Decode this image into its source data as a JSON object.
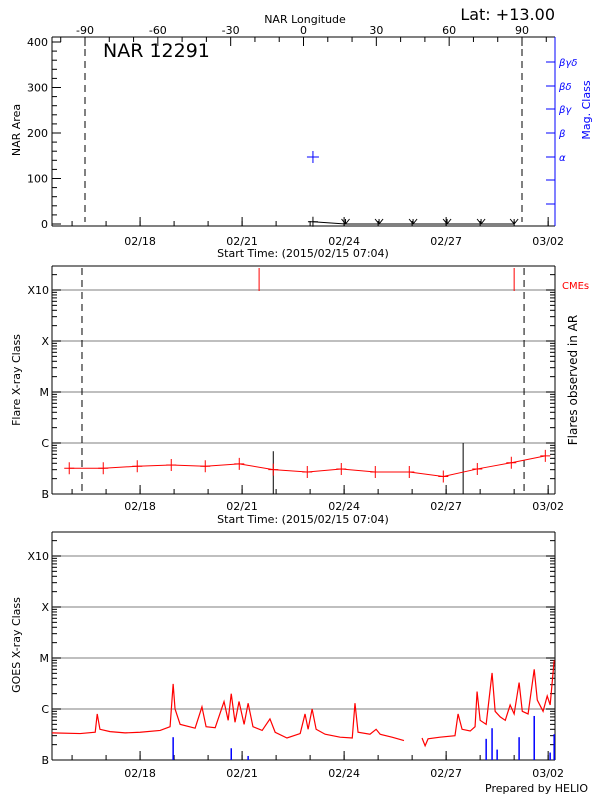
{
  "header": {
    "lat_label": "Lat: +13.00",
    "region_label": "NAR 12291",
    "longitude_title": "NAR Longitude"
  },
  "footer": {
    "prepared_by": "Prepared by HELIO"
  },
  "colors": {
    "axis": "#000000",
    "mag_class": "#0000ff",
    "flare_series": "#ff0000",
    "cme": "#ff0000",
    "grid": "#999999",
    "goes_events": "#0000ff"
  },
  "chart_data": [
    {
      "type": "line",
      "xlabel": "Start Time: (2015/02/15 07:04)",
      "ylabel": "NAR Area",
      "y2label": "Mag. Class",
      "xlim": [
        "02/15 09:50",
        "03/02 04:50"
      ],
      "ylim": [
        0,
        400
      ],
      "x_ticks": [
        "02/18",
        "02/21",
        "02/24",
        "02/27",
        "03/02"
      ],
      "y_ticks": [
        "0",
        "100",
        "200",
        "300",
        "400"
      ],
      "top_axis": {
        "label": "NAR Longitude",
        "ticks": [
          "-90",
          "-60",
          "-30",
          "0",
          "30",
          "60",
          "90"
        ],
        "limb_markers": [
          -90,
          90
        ]
      },
      "y2_ticks": [
        "α",
        "β",
        "βγ",
        "βδ",
        "βγδ"
      ],
      "area_series": [
        {
          "t": "02/23 02:00",
          "area": 5,
          "marker": "plus"
        },
        {
          "t": "02/24 01:00",
          "area": 0,
          "marker": "arrow"
        },
        {
          "t": "02/25 00:40",
          "area": 0,
          "marker": "arrow"
        },
        {
          "t": "02/26 00:40",
          "area": 0,
          "marker": "arrow"
        },
        {
          "t": "02/27 00:40",
          "area": 0,
          "marker": "arrow"
        },
        {
          "t": "02/28 00:40",
          "area": 0,
          "marker": "arrow"
        },
        {
          "t": "03/01 00:00",
          "area": 0,
          "marker": "arrow"
        }
      ],
      "mag_class_series": [
        {
          "t": "02/23 02:00",
          "class": "α"
        }
      ]
    },
    {
      "type": "line",
      "xlabel": "Start Time: (2015/02/15 07:04)",
      "ylabel": "Flare X-ray Class",
      "y2label": "Flares observed in AR",
      "xlim": [
        "02/15 09:50",
        "03/02 04:50"
      ],
      "ylim": [
        "B1",
        "X28"
      ],
      "scale": "log",
      "grid": true,
      "x_ticks": [
        "02/18",
        "02/21",
        "02/24",
        "02/27",
        "03/02"
      ],
      "y_ticks": [
        "B",
        "C",
        "M",
        "X",
        "X10"
      ],
      "limb_markers": [
        "02/16 07:00",
        "03/01 07:00"
      ],
      "series": [
        {
          "points": [
            [
              "02/15 22:00",
              "B3.2"
            ],
            [
              "02/16 22:00",
              "B3.2"
            ],
            [
              "02/17 22:00",
              "B3.5"
            ],
            [
              "02/18 22:00",
              "B3.7"
            ],
            [
              "02/19 22:00",
              "B3.5"
            ],
            [
              "02/20 22:00",
              "B3.9"
            ],
            [
              "02/21 22:00",
              "B3.0"
            ],
            [
              "02/22 22:00",
              "B2.7"
            ],
            [
              "02/23 22:00",
              "B3.1"
            ],
            [
              "02/24 22:00",
              "B2.7"
            ],
            [
              "02/25 22:00",
              "B2.7"
            ],
            [
              "02/26 22:00",
              "B2.2"
            ],
            [
              "02/27 22:00",
              "B3.1"
            ],
            [
              "02/28 22:00",
              "B4.1"
            ],
            [
              "03/01 22:00",
              "B5.6"
            ]
          ]
        }
      ],
      "flares": [
        [
          "02/21 22:00",
          "B6.9"
        ],
        [
          "02/27 12:00",
          "C1.0"
        ]
      ],
      "cmes_label": "CMEs",
      "cmes": [
        "02/21 12:00",
        "03/01 00:00"
      ]
    },
    {
      "type": "line",
      "ylabel": "GOES X-ray Class",
      "xlim": [
        "02/15 09:50",
        "03/02 04:50"
      ],
      "ylim": [
        "B1",
        "X28"
      ],
      "scale": "log",
      "grid": true,
      "x_ticks": [
        "02/18",
        "02/21",
        "02/24",
        "02/27",
        "03/02"
      ],
      "y_ticks": [
        "B",
        "C",
        "M",
        "X",
        "X10"
      ],
      "series": [
        {
          "segments": [
            [
              [
                "02/15 09:50",
                "B3.4"
              ],
              [
                "02/16 05:45",
                "B3.3"
              ],
              [
                "02/16 16:20",
                "B3.5"
              ],
              [
                "02/16 17:45",
                "B8.0"
              ],
              [
                "02/16 19:40",
                "B4.0"
              ],
              [
                "02/17 02:50",
                "B3.6"
              ],
              [
                "02/17 13:25",
                "B3.4"
              ],
              [
                "02/18 00:00",
                "B3.5"
              ],
              [
                "02/18 14:10",
                "B3.8"
              ],
              [
                "02/18 21:10",
                "B4.5"
              ],
              [
                "02/18 23:20",
                "C3.1"
              ],
              [
                "02/19 00:40",
                "C1.0"
              ],
              [
                "02/19 04:15",
                "B5.0"
              ],
              [
                "02/19 14:50",
                "B4.2"
              ],
              [
                "02/19 19:40",
                "C1.1"
              ],
              [
                "02/19 22:35",
                "B4.5"
              ],
              [
                "02/20 05:00",
                "B4.3"
              ],
              [
                "02/20 11:15",
                "C1.4"
              ],
              [
                "02/20 14:10",
                "B6.0"
              ],
              [
                "02/20 16:20",
                "C2.0"
              ],
              [
                "02/20 19:00",
                "B5.5"
              ],
              [
                "02/20 21:50",
                "C1.4"
              ],
              [
                "02/21 01:25",
                "B5.0"
              ],
              [
                "02/21 04:15",
                "C1.3"
              ],
              [
                "02/21 07:40",
                "B4.5"
              ],
              [
                "02/21 14:10",
                "B3.8"
              ],
              [
                "02/21 19:40",
                "B6.4"
              ],
              [
                "02/21 23:20",
                "B3.5"
              ],
              [
                "02/22 07:40",
                "B2.7"
              ],
              [
                "02/22 17:00",
                "B3.3"
              ],
              [
                "02/22 20:25",
                "B8.0"
              ],
              [
                "02/22 22:35",
                "B4.0"
              ],
              [
                "02/23 01:25",
                "C1.0"
              ],
              [
                "02/23 04:15",
                "B4.0"
              ],
              [
                "02/23 10:35",
                "B3.2"
              ],
              [
                "02/23 21:10",
                "B2.8"
              ],
              [
                "02/24 05:45",
                "B2.7"
              ],
              [
                "02/24 07:40",
                "C1.3"
              ],
              [
                "02/24 09:50",
                "B3.5"
              ],
              [
                "02/24 18:15",
                "B3.2"
              ],
              [
                "02/24 22:35",
                "B4.0"
              ],
              [
                "02/25 01:25",
                "B3.2"
              ],
              [
                "02/25 09:50",
                "B2.8"
              ],
              [
                "02/25 18:15",
                "B2.4"
              ]
            ],
            [
              [
                "02/26 07:00",
                "B2.7"
              ],
              [
                "02/26 09:10",
                "B1.9"
              ],
              [
                "02/26 11:15",
                "B2.6"
              ],
              [
                "02/26 19:40",
                "B2.8"
              ],
              [
                "02/27 06:15",
                "B3.0"
              ],
              [
                "02/27 08:25",
                "B8.0"
              ],
              [
                "02/27 11:15",
                "B4.0"
              ],
              [
                "02/27 17:00",
                "B3.7"
              ],
              [
                "02/27 20:25",
                "B4.5"
              ],
              [
                "02/27 21:50",
                "C2.2"
              ],
              [
                "02/28 00:00",
                "B6.0"
              ],
              [
                "02/28 04:15",
                "B5.0"
              ],
              [
                "02/28 08:25",
                "C5.1"
              ],
              [
                "02/28 10:35",
                "B9.0"
              ],
              [
                "02/28 14:10",
                "B7.0"
              ],
              [
                "02/28 17:45",
                "B6.0"
              ],
              [
                "02/28 21:10",
                "C1.2"
              ],
              [
                "03/01 00:00",
                "B8.0"
              ],
              [
                "03/01 03:30",
                "C3.3"
              ],
              [
                "03/01 05:45",
                "B9.0"
              ],
              [
                "03/01 09:50",
                "B8.0"
              ],
              [
                "03/01 14:10",
                "C6.0"
              ],
              [
                "03/01 16:20",
                "C1.5"
              ],
              [
                "03/01 20:25",
                "B9.0"
              ],
              [
                "03/01 23:20",
                "C1.8"
              ],
              [
                "03/02 01:25",
                "C1.2"
              ],
              [
                "03/02 04:15",
                "C9.0"
              ]
            ]
          ]
        }
      ],
      "events": [
        [
          "02/18 23:20",
          "B2.8"
        ],
        [
          "02/20 16:20",
          "B1.7"
        ],
        [
          "02/21 04:15",
          "B1.2"
        ],
        [
          "02/28 04:15",
          "B2.6"
        ],
        [
          "02/28 08:25",
          "B4.2"
        ],
        [
          "02/28 12:00",
          "B1.6"
        ],
        [
          "03/01 03:30",
          "B2.8"
        ],
        [
          "03/01 14:10",
          "B7.3"
        ],
        [
          "03/02 01:25",
          "B1.4"
        ],
        [
          "03/02 04:15",
          "B3.2"
        ]
      ]
    }
  ]
}
